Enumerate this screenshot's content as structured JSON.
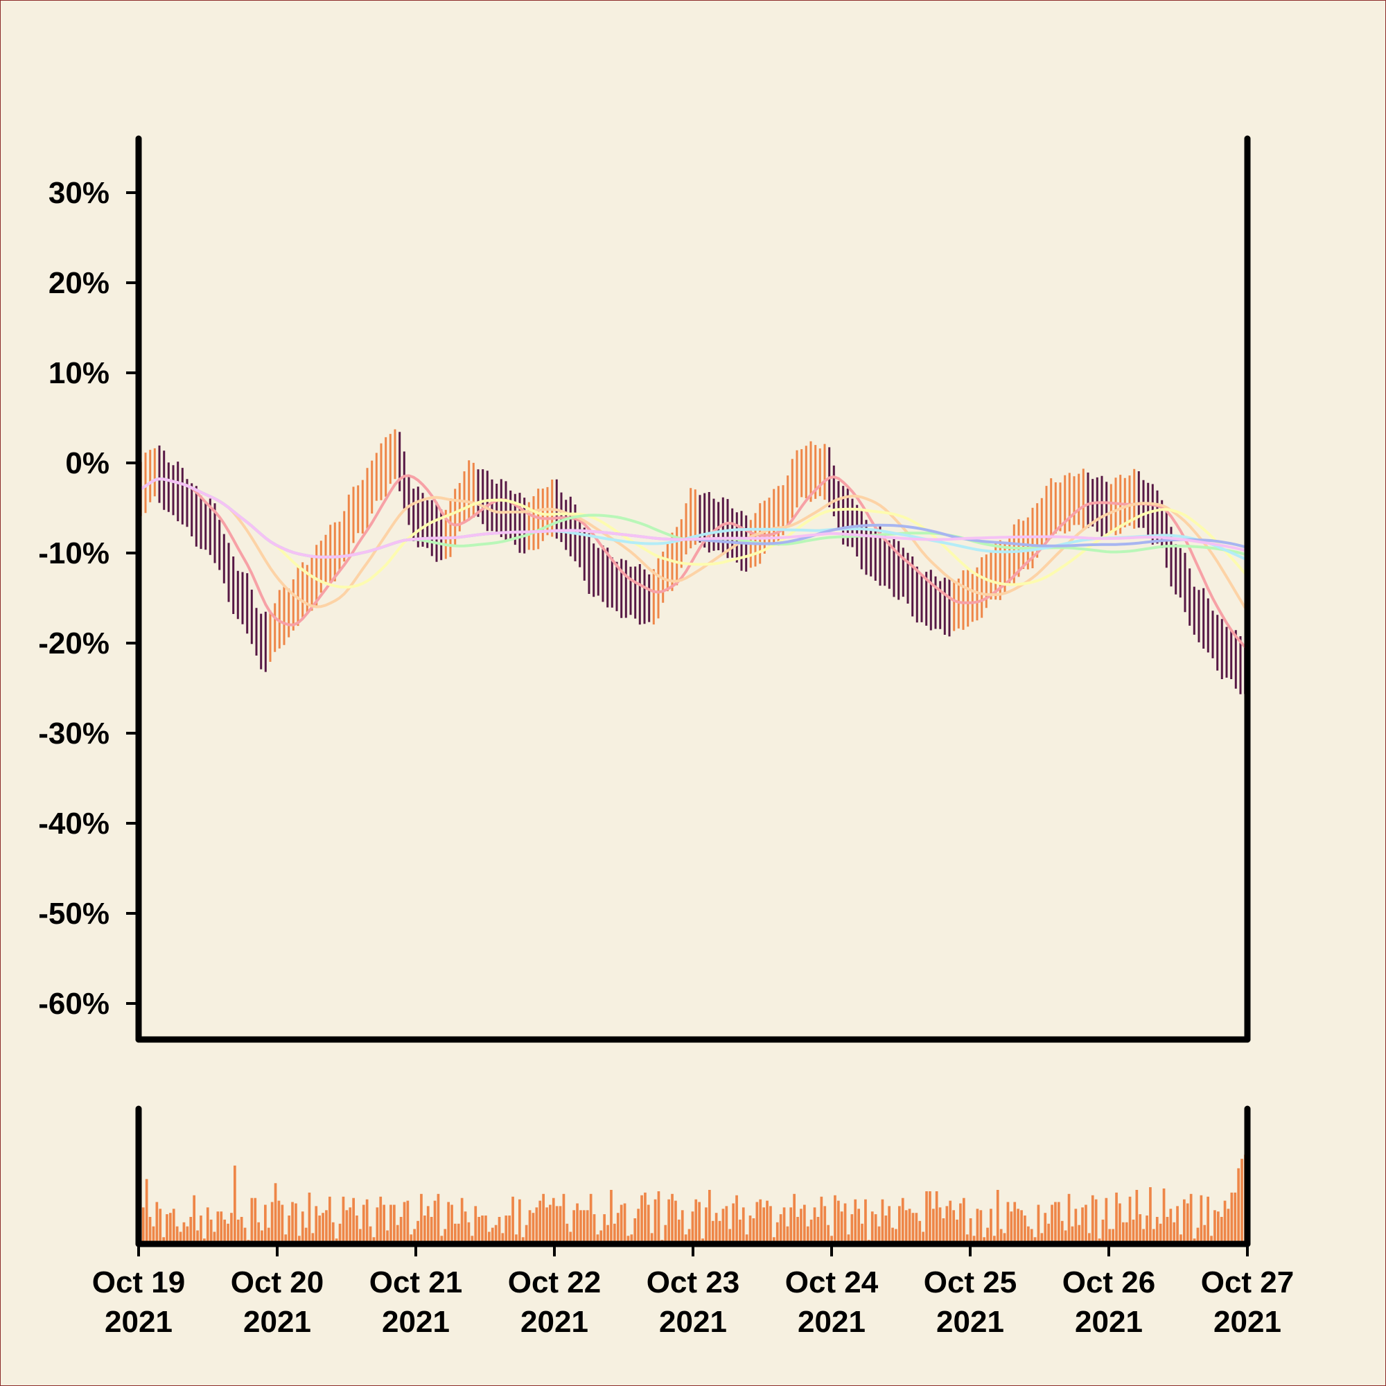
{
  "colors": {
    "background": "#f6f0e0",
    "bar_up": "#ee8648",
    "bar_down": "#571845",
    "axis": "#000000",
    "volume": "#ee8648",
    "ma": [
      "#f7a1a6",
      "#fdd3a6",
      "#fdfcb0",
      "#b9f7b8",
      "#b3ecf7",
      "#a7b5f0",
      "#f5c2f5"
    ]
  },
  "chart_data": {
    "type": "ohlc",
    "title": "",
    "xlabel": "",
    "ylabel": "",
    "ylim": [
      -64,
      36
    ],
    "y_ticks": [
      30,
      20,
      10,
      0,
      -10,
      -20,
      -30,
      -40,
      -50,
      -60
    ],
    "y_tick_labels": [
      "30%",
      "20%",
      "10%",
      "0%",
      "-10%",
      "-20%",
      "-30%",
      "-40%",
      "-50%",
      "-60%"
    ],
    "x_range": [
      "2021-10-19",
      "2021-10-27"
    ],
    "x_ticks": [
      "2021-10-19",
      "2021-10-20",
      "2021-10-21",
      "2021-10-22",
      "2021-10-23",
      "2021-10-24",
      "2021-10-25",
      "2021-10-26",
      "2021-10-27"
    ],
    "x_tick_labels": [
      [
        "Oct 19",
        "2021"
      ],
      [
        "Oct 20",
        "2021"
      ],
      [
        "Oct 21",
        "2021"
      ],
      [
        "Oct 22",
        "2021"
      ],
      [
        "Oct 23",
        "2021"
      ],
      [
        "Oct 24",
        "2021"
      ],
      [
        "Oct 25",
        "2021"
      ],
      [
        "Oct 26",
        "2021"
      ],
      [
        "Oct 27",
        "2021"
      ]
    ],
    "bars_per_day": 30,
    "close_path_percent": [
      [
        0,
        -3
      ],
      [
        0.12,
        -1
      ],
      [
        0.25,
        -3
      ],
      [
        0.5,
        -7
      ],
      [
        0.75,
        -15
      ],
      [
        0.9,
        -20
      ],
      [
        1.05,
        -17
      ],
      [
        1.2,
        -14
      ],
      [
        1.4,
        -10
      ],
      [
        1.6,
        -5
      ],
      [
        1.75,
        -1
      ],
      [
        1.85,
        1
      ],
      [
        2.0,
        -6
      ],
      [
        2.2,
        -8
      ],
      [
        2.4,
        -3
      ],
      [
        2.6,
        -5
      ],
      [
        2.8,
        -7
      ],
      [
        3.0,
        -5
      ],
      [
        3.1,
        -7
      ],
      [
        3.3,
        -12
      ],
      [
        3.5,
        -14
      ],
      [
        3.7,
        -15
      ],
      [
        3.85,
        -11
      ],
      [
        4.0,
        -6
      ],
      [
        4.2,
        -7
      ],
      [
        4.4,
        -9
      ],
      [
        4.6,
        -6
      ],
      [
        4.8,
        -1
      ],
      [
        4.95,
        -1
      ],
      [
        5.1,
        -6
      ],
      [
        5.3,
        -10
      ],
      [
        5.5,
        -12
      ],
      [
        5.65,
        -15
      ],
      [
        5.85,
        -16
      ],
      [
        6.0,
        -15
      ],
      [
        6.2,
        -12
      ],
      [
        6.4,
        -9
      ],
      [
        6.6,
        -5
      ],
      [
        6.8,
        -4
      ],
      [
        7.0,
        -5
      ],
      [
        7.2,
        -4
      ],
      [
        7.35,
        -6
      ],
      [
        7.5,
        -12
      ],
      [
        7.65,
        -17
      ],
      [
        7.85,
        -21
      ],
      [
        8.0,
        -23
      ]
    ],
    "bar_half_range_percent": 3,
    "moving_average_windows": [
      10,
      20,
      30,
      60,
      90,
      120,
      150
    ],
    "volume": {
      "type": "bar",
      "ylim": [
        0,
        1
      ],
      "values": [
        0.17,
        0.27,
        0.48,
        0.2,
        0.13,
        0.31,
        0.26,
        0.05,
        0.22,
        0.23,
        0.26,
        0.13,
        0.09,
        0.16,
        0.13,
        0.2,
        0.36,
        0.1,
        0.21,
        0.04,
        0.27,
        0.18,
        0.09,
        0.24,
        0.24,
        0.18,
        0.15,
        0.23,
        0.58,
        0.18,
        0.2,
        0.12,
        0.03,
        0.34,
        0.34,
        0.16,
        0.1,
        0.29,
        0.12,
        0.31,
        0.45,
        0.32,
        0.29,
        0.07,
        0.21,
        0.31,
        0.3,
        0.06,
        0.24,
        0.12,
        0.38,
        0.08,
        0.28,
        0.21,
        0.23,
        0.25,
        0.35,
        0.16,
        0.04,
        0.15,
        0.35,
        0.25,
        0.27,
        0.34,
        0.21,
        0.11,
        0.29,
        0.33,
        0.13,
        0.05,
        0.27,
        0.35,
        0.29,
        0.1,
        0.29,
        0.29,
        0.14,
        0.2,
        0.31,
        0.32,
        0.07,
        0.11,
        0.17,
        0.37,
        0.21,
        0.28,
        0.2,
        0.32,
        0.37,
        0.06,
        0.11,
        0.31,
        0.29,
        0.15,
        0.15,
        0.34,
        0.24,
        0.16,
        0.06,
        0.28,
        0.2,
        0.21,
        0.21,
        0.09,
        0.12,
        0.14,
        0.2,
        0.08,
        0.21,
        0.21,
        0.35,
        0.07,
        0.33,
        0.05,
        0.14,
        0.25,
        0.23,
        0.27,
        0.32,
        0.37,
        0.27,
        0.29,
        0.34,
        0.28,
        0.28,
        0.37,
        0.15,
        0.09,
        0.25,
        0.3,
        0.25,
        0.25,
        0.25,
        0.37,
        0.22,
        0.07,
        0.1,
        0.22,
        0.14,
        0.4,
        0.15,
        0.23,
        0.29,
        0.3,
        0.06,
        0.07,
        0.19,
        0.26,
        0.36,
        0.38,
        0.29,
        0.08,
        0.33,
        0.39,
        0.03,
        0.14,
        0.33,
        0.37,
        0.32,
        0.18,
        0.25,
        0.07,
        0.11,
        0.24,
        0.33,
        0.31,
        0.04,
        0.27,
        0.4,
        0.17,
        0.23,
        0.17,
        0.26,
        0.28,
        0.11,
        0.3,
        0.36,
        0.18,
        0.27,
        0.07,
        0.21,
        0.19,
        0.31,
        0.33,
        0.27,
        0.32,
        0.28,
        0.05,
        0.16,
        0.22,
        0.27,
        0.13,
        0.27,
        0.37,
        0.2,
        0.26,
        0.29,
        0.13,
        0.18,
        0.27,
        0.2,
        0.35,
        0.28,
        0.14,
        0.06,
        0.36,
        0.32,
        0.24,
        0.3,
        0.07,
        0.22,
        0.33,
        0.26,
        0.15,
        0.33,
        0.03,
        0.24,
        0.22,
        0.13,
        0.33,
        0.21,
        0.28,
        0.12,
        0.11,
        0.28,
        0.34,
        0.25,
        0.26,
        0.23,
        0.23,
        0.17,
        0.09,
        0.39,
        0.39,
        0.26,
        0.39,
        0.27,
        0.19,
        0.28,
        0.32,
        0.25,
        0.18,
        0.3,
        0.34,
        0.07,
        0.19,
        0.06,
        0.26,
        0.25,
        0.05,
        0.12,
        0.26,
        0.06,
        0.4,
        0.11,
        0.08,
        0.31,
        0.24,
        0.31,
        0.26,
        0.25,
        0.21,
        0.13,
        0.11,
        0.05,
        0.29,
        0.08,
        0.23,
        0.15,
        0.29,
        0.31,
        0.31,
        0.17,
        0.1,
        0.37,
        0.13,
        0.26,
        0.14,
        0.27,
        0.29,
        0.08,
        0.36,
        0.33,
        0.04,
        0.18,
        0.34,
        0.11,
        0.11,
        0.38,
        0.3,
        0.16,
        0.16,
        0.35,
        0.18,
        0.4,
        0.22,
        0.11,
        0.21,
        0.42,
        0.11,
        0.2,
        0.15,
        0.41,
        0.2,
        0.26,
        0.16,
        0.28,
        0.07,
        0.33,
        0.3,
        0.37,
        0.04,
        0.12,
        0.36,
        0.14,
        0.35,
        0.06,
        0.25,
        0.24,
        0.2,
        0.32,
        0.26,
        0.38,
        0.38,
        0.56,
        0.63,
        0.66
      ]
    }
  }
}
